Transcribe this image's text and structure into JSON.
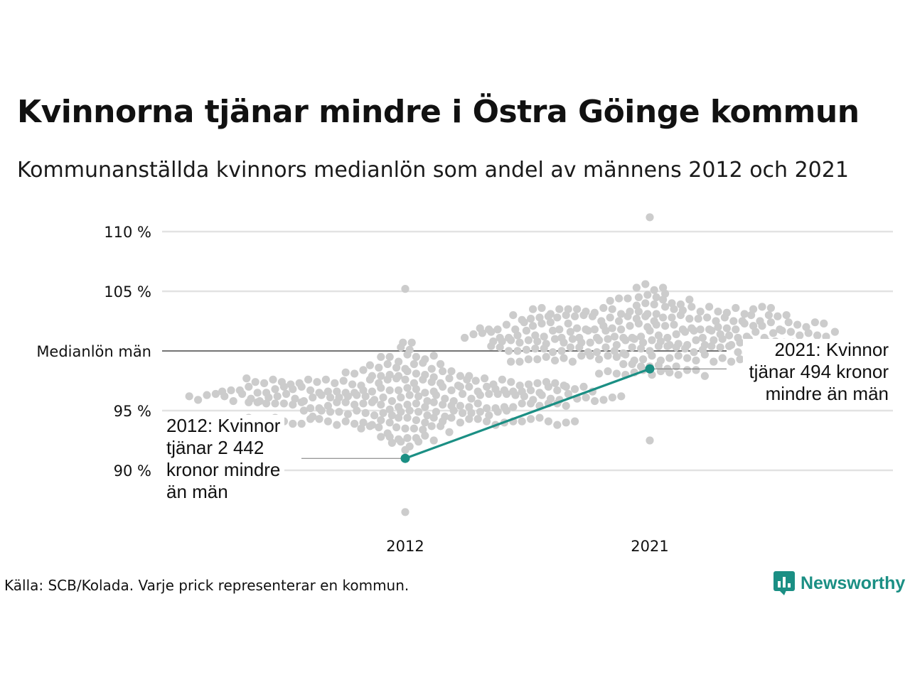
{
  "title": "Kvinnorna tjänar mindre i Östra Göinge kommun",
  "subtitle": "Kommunanställda kvinnors medianlön som andel av männens 2012 och 2021",
  "source": "Källa: SCB/Kolada. Varje prick representerar en kommun.",
  "brand": "Newsworthy",
  "colors": {
    "highlight": "#1b8f84",
    "dots": "#cccccc",
    "grid": "#e2e2e2",
    "reference": "#222222"
  },
  "chart_data": {
    "type": "scatter",
    "style": "beeswarm",
    "title": "Kvinnorna tjänar mindre i Östra Göinge kommun",
    "subtitle": "Kommunanställda kvinnors medianlön som andel av männens 2012 och 2021",
    "categories": [
      "2012",
      "2021"
    ],
    "y_ticks": [
      {
        "value": 110,
        "label": "110 %"
      },
      {
        "value": 105,
        "label": "105 %"
      },
      {
        "value": 100,
        "label": "Medianlön män"
      },
      {
        "value": 95,
        "label": "95 %"
      },
      {
        "value": 90,
        "label": "90 %"
      }
    ],
    "ylim": [
      86.3,
      111.4
    ],
    "reference_line": {
      "value": 100,
      "label": "Medianlön män"
    },
    "grid": true,
    "highlight": {
      "name": "Östra Göinge",
      "values": [
        91.0,
        98.5
      ],
      "annotations": [
        {
          "year": "2012",
          "lines": [
            "2012: Kvinnor",
            "tjänar 2 442",
            "kronor mindre",
            "än män"
          ]
        },
        {
          "year": "2021",
          "lines": [
            "2021: Kvinnor",
            "tjänar 494 kronor",
            "mindre än män"
          ]
        }
      ]
    },
    "distribution": [
      {
        "year": "2012",
        "count": 290,
        "min": 86.5,
        "max": 105.2,
        "center": 96.0,
        "spread": 2.4
      },
      {
        "year": "2021",
        "count": 290,
        "min": 92.5,
        "max": 111.2,
        "center": 101.2,
        "spread": 2.4
      }
    ]
  }
}
